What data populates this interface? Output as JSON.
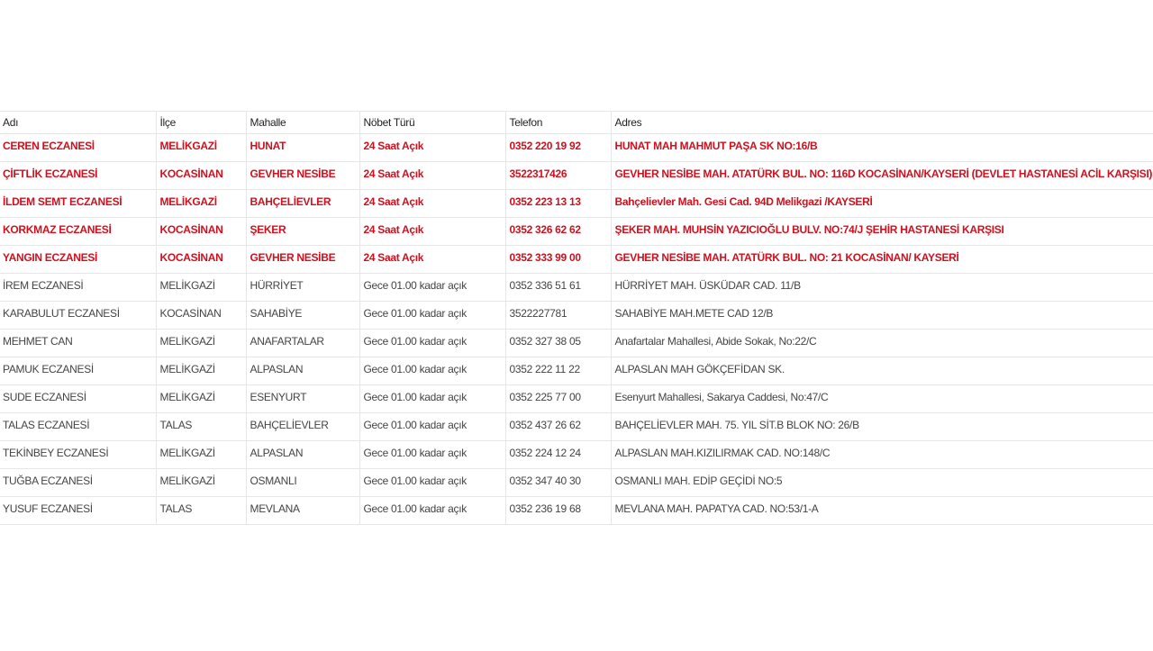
{
  "table": {
    "headers": [
      "Adı",
      "İlçe",
      "Mahalle",
      "Nöbet Türü",
      "Telefon",
      "Adres"
    ],
    "highlight_color": "#d0101e",
    "rows": [
      {
        "highlight": true,
        "cells": [
          "CEREN ECZANESİ",
          "MELİKGAZİ",
          "HUNAT",
          "24 Saat Açık",
          "0352 220 19 92",
          "HUNAT MAH MAHMUT PAŞA SK NO:16/B"
        ]
      },
      {
        "highlight": true,
        "cells": [
          "ÇİFTLİK ECZANESİ",
          "KOCASİNAN",
          "GEVHER NESİBE",
          "24 Saat Açık",
          "3522317426",
          "GEVHER NESİBE MAH. ATATÜRK BUL. NO: 116D KOCASİNAN/KAYSERİ (DEVLET HASTANESİ ACİL KARŞISI)"
        ]
      },
      {
        "highlight": true,
        "cells": [
          "İLDEM SEMT ECZANESİ",
          "MELİKGAZİ",
          "BAHÇELİEVLER",
          "24 Saat Açık",
          "0352 223 13 13",
          "Bahçelievler Mah. Gesi Cad. 94D Melikgazi /KAYSERİ"
        ]
      },
      {
        "highlight": true,
        "cells": [
          "KORKMAZ ECZANESİ",
          "KOCASİNAN",
          "ŞEKER",
          "24 Saat Açık",
          "0352 326 62 62",
          "ŞEKER MAH. MUHSİN YAZICIOĞLU BULV. NO:74/J ŞEHİR HASTANESİ KARŞISI"
        ]
      },
      {
        "highlight": true,
        "cells": [
          "YANGIN ECZANESİ",
          "KOCASİNAN",
          "GEVHER NESİBE",
          "24 Saat Açık",
          "0352 333 99 00",
          "GEVHER NESİBE MAH. ATATÜRK BUL. NO: 21 KOCASİNAN/ KAYSERİ"
        ]
      },
      {
        "highlight": false,
        "cells": [
          "İREM ECZANESİ",
          "MELİKGAZİ",
          "HÜRRİYET",
          "Gece 01.00 kadar açık",
          "0352 336 51 61",
          "HÜRRİYET MAH. ÜSKÜDAR CAD. 11/B"
        ]
      },
      {
        "highlight": false,
        "cells": [
          "KARABULUT ECZANESİ",
          "KOCASİNAN",
          "SAHABİYE",
          "Gece 01.00 kadar açık",
          "3522227781",
          "SAHABİYE MAH.METE CAD 12/B"
        ]
      },
      {
        "highlight": false,
        "cells": [
          "MEHMET CAN",
          "MELİKGAZİ",
          "ANAFARTALAR",
          "Gece 01.00 kadar açık",
          "0352 327 38 05",
          "Anafartalar Mahallesi, Abide Sokak, No:22/C"
        ]
      },
      {
        "highlight": false,
        "cells": [
          "PAMUK ECZANESİ",
          "MELİKGAZİ",
          "ALPASLAN",
          "Gece 01.00 kadar açık",
          "0352 222 11 22",
          "ALPASLAN MAH GÖKÇEFİDAN SK."
        ]
      },
      {
        "highlight": false,
        "cells": [
          "SUDE ECZANESİ",
          "MELİKGAZİ",
          "ESENYURT",
          "Gece 01.00 kadar açık",
          "0352 225 77 00",
          "Esenyurt Mahallesi, Sakarya Caddesi, No:47/C"
        ]
      },
      {
        "highlight": false,
        "cells": [
          "TALAS ECZANESİ",
          "TALAS",
          "BAHÇELİEVLER",
          "Gece 01.00 kadar açık",
          "0352 437 26 62",
          "BAHÇELİEVLER MAH. 75. YIL SİT.B BLOK NO: 26/B"
        ]
      },
      {
        "highlight": false,
        "cells": [
          "TEKİNBEY ECZANESİ",
          "MELİKGAZİ",
          "ALPASLAN",
          "Gece 01.00 kadar açık",
          "0352 224 12 24",
          "ALPASLAN MAH.KIZILIRMAK CAD. NO:148/C"
        ]
      },
      {
        "highlight": false,
        "cells": [
          "TUĞBA ECZANESİ",
          "MELİKGAZİ",
          "OSMANLI",
          "Gece 01.00 kadar açık",
          "0352 347 40 30",
          "OSMANLI MAH. EDİP GEÇİDİ NO:5"
        ]
      },
      {
        "highlight": false,
        "cells": [
          "YUSUF ECZANESİ",
          "TALAS",
          "MEVLANA",
          "Gece 01.00 kadar açık",
          "0352 236 19 68",
          "MEVLANA MAH. PAPATYA CAD. NO:53/1-A"
        ]
      }
    ]
  }
}
